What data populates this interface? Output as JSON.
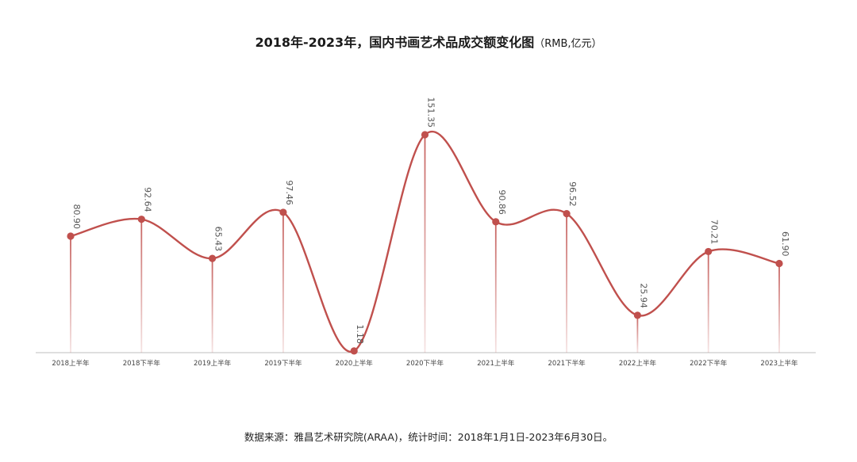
{
  "title": "2018年-2023年，国内书画艺术品成交额变化图",
  "unit": "（RMB,亿元）",
  "source": "数据来源：雅昌艺术研究院(ARAA)，统计时间：2018年1月1日-2023年6月30日。",
  "chart_data": {
    "type": "line",
    "title": "2018年-2023年，国内书画艺术品成交额变化图",
    "unit": "RMB,亿元",
    "categories": [
      "2018上半年",
      "2018下半年",
      "2019上半年",
      "2019下半年",
      "2020上半年",
      "2020下半年",
      "2021上半年",
      "2021下半年",
      "2022上半年",
      "2022下半年",
      "2023上半年"
    ],
    "values": [
      80.9,
      92.64,
      65.43,
      97.46,
      1.18,
      151.35,
      90.86,
      96.52,
      25.94,
      70.21,
      61.9
    ],
    "value_labels": [
      "80.90",
      "92.64",
      "65.43",
      "97.46",
      "1.18",
      "151.35",
      "90.86",
      "96.52",
      "25.94",
      "70.21",
      "61.90"
    ],
    "xlabel": "",
    "ylabel": "",
    "smooth": true,
    "grid": false,
    "legend": "none",
    "colors": {
      "line": "#c0504d",
      "marker": "#c0504d",
      "label": "#555555",
      "axis": "#cccccc"
    }
  }
}
